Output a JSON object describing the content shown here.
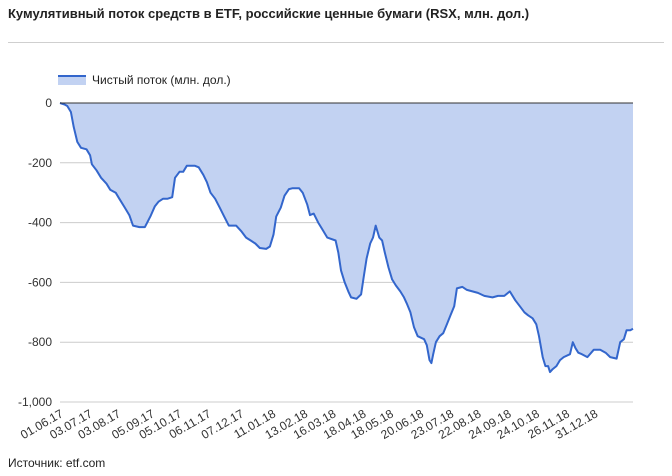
{
  "title": "Кумулятивный поток средств в ETF, российские ценные бумаги (RSX, млн. дол.)",
  "source": "Источник: etf.com",
  "colors": {
    "line": "#3366cc",
    "area": "#c2d2f2",
    "grid": "#cccccc",
    "zero": "#333333"
  },
  "chart_data": {
    "type": "area",
    "legend": {
      "position": "top-left"
    },
    "series": [
      {
        "name": "Чистый поток (млн. дол.)",
        "points": [
          [
            0,
            0
          ],
          [
            5,
            -5
          ],
          [
            8,
            -10
          ],
          [
            12,
            -30
          ],
          [
            15,
            -80
          ],
          [
            19,
            -130
          ],
          [
            23,
            -150
          ],
          [
            29,
            -155
          ],
          [
            33,
            -175
          ],
          [
            35,
            -205
          ],
          [
            40,
            -225
          ],
          [
            45,
            -250
          ],
          [
            51,
            -270
          ],
          [
            55,
            -290
          ],
          [
            61,
            -300
          ],
          [
            65,
            -320
          ],
          [
            71,
            -350
          ],
          [
            76,
            -375
          ],
          [
            80,
            -410
          ],
          [
            87,
            -415
          ],
          [
            93,
            -415
          ],
          [
            99,
            -380
          ],
          [
            104,
            -345
          ],
          [
            108,
            -330
          ],
          [
            113,
            -320
          ],
          [
            118,
            -320
          ],
          [
            123,
            -315
          ],
          [
            126,
            -250
          ],
          [
            131,
            -230
          ],
          [
            135,
            -230
          ],
          [
            139,
            -210
          ],
          [
            148,
            -210
          ],
          [
            152,
            -215
          ],
          [
            157,
            -240
          ],
          [
            161,
            -265
          ],
          [
            165,
            -300
          ],
          [
            170,
            -320
          ],
          [
            175,
            -350
          ],
          [
            180,
            -380
          ],
          [
            185,
            -410
          ],
          [
            193,
            -410
          ],
          [
            199,
            -430
          ],
          [
            204,
            -450
          ],
          [
            209,
            -460
          ],
          [
            214,
            -470
          ],
          [
            219,
            -485
          ],
          [
            226,
            -488
          ],
          [
            230,
            -480
          ],
          [
            234,
            -440
          ],
          [
            237,
            -380
          ],
          [
            242,
            -350
          ],
          [
            246,
            -310
          ],
          [
            251,
            -288
          ],
          [
            255,
            -285
          ],
          [
            262,
            -285
          ],
          [
            266,
            -300
          ],
          [
            271,
            -340
          ],
          [
            274,
            -375
          ],
          [
            278,
            -370
          ],
          [
            283,
            -400
          ],
          [
            287,
            -420
          ],
          [
            293,
            -450
          ],
          [
            302,
            -460
          ],
          [
            305,
            -500
          ],
          [
            308,
            -560
          ],
          [
            312,
            -600
          ],
          [
            316,
            -630
          ],
          [
            319,
            -650
          ],
          [
            325,
            -655
          ],
          [
            330,
            -640
          ],
          [
            333,
            -580
          ],
          [
            336,
            -520
          ],
          [
            340,
            -470
          ],
          [
            343,
            -450
          ],
          [
            346,
            -410
          ],
          [
            350,
            -450
          ],
          [
            353,
            -460
          ],
          [
            356,
            -500
          ],
          [
            360,
            -550
          ],
          [
            364,
            -590
          ],
          [
            368,
            -610
          ],
          [
            373,
            -630
          ],
          [
            377,
            -650
          ],
          [
            380,
            -670
          ],
          [
            384,
            -700
          ],
          [
            388,
            -750
          ],
          [
            392,
            -780
          ],
          [
            399,
            -790
          ],
          [
            402,
            -810
          ],
          [
            405,
            -860
          ],
          [
            407,
            -870
          ],
          [
            409,
            -840
          ],
          [
            412,
            -800
          ],
          [
            416,
            -780
          ],
          [
            420,
            -770
          ],
          [
            424,
            -740
          ],
          [
            428,
            -710
          ],
          [
            432,
            -680
          ],
          [
            435,
            -620
          ],
          [
            441,
            -615
          ],
          [
            446,
            -625
          ],
          [
            452,
            -630
          ],
          [
            458,
            -635
          ],
          [
            465,
            -645
          ],
          [
            474,
            -650
          ],
          [
            480,
            -645
          ],
          [
            487,
            -645
          ],
          [
            493,
            -630
          ],
          [
            499,
            -660
          ],
          [
            504,
            -680
          ],
          [
            509,
            -700
          ],
          [
            513,
            -710
          ],
          [
            518,
            -720
          ],
          [
            522,
            -740
          ],
          [
            525,
            -780
          ],
          [
            529,
            -850
          ],
          [
            532,
            -880
          ],
          [
            535,
            -880
          ],
          [
            537,
            -900
          ],
          [
            540,
            -890
          ],
          [
            544,
            -880
          ],
          [
            548,
            -860
          ],
          [
            552,
            -850
          ],
          [
            559,
            -840
          ],
          [
            562,
            -800
          ],
          [
            565,
            -820
          ],
          [
            568,
            -835
          ],
          [
            572,
            -840
          ],
          [
            578,
            -850
          ],
          [
            585,
            -825
          ],
          [
            592,
            -825
          ],
          [
            598,
            -835
          ],
          [
            603,
            -850
          ],
          [
            610,
            -855
          ],
          [
            614,
            -800
          ],
          [
            618,
            -790
          ],
          [
            621,
            -760
          ],
          [
            625,
            -760
          ],
          [
            628,
            -755
          ]
        ]
      }
    ],
    "x_range": [
      0,
      628
    ],
    "x_ticks": [
      {
        "x": 0,
        "label": "01.06.17"
      },
      {
        "x": 32,
        "label": "03.07.17"
      },
      {
        "x": 63,
        "label": "03.08.17"
      },
      {
        "x": 100,
        "label": "05.09.17"
      },
      {
        "x": 130,
        "label": "05.10.17"
      },
      {
        "x": 162,
        "label": "06.11.17"
      },
      {
        "x": 198,
        "label": "07.12.17"
      },
      {
        "x": 233,
        "label": "11.01.18"
      },
      {
        "x": 268,
        "label": "13.02.18"
      },
      {
        "x": 299,
        "label": "16.03.18"
      },
      {
        "x": 332,
        "label": "18.04.18"
      },
      {
        "x": 362,
        "label": "18.05.18"
      },
      {
        "x": 395,
        "label": "20.06.18"
      },
      {
        "x": 428,
        "label": "23.07.18"
      },
      {
        "x": 458,
        "label": "22.08.18"
      },
      {
        "x": 491,
        "label": "24.09.18"
      },
      {
        "x": 522,
        "label": "24.10.18"
      },
      {
        "x": 555,
        "label": "26.11.18"
      },
      {
        "x": 586,
        "label": "31.12.18"
      }
    ],
    "y_range": [
      -1000,
      0
    ],
    "y_ticks": [
      {
        "value": 0,
        "label": "0"
      },
      {
        "value": -200,
        "label": "-200"
      },
      {
        "value": -400,
        "label": "-400"
      },
      {
        "value": -600,
        "label": "-600"
      },
      {
        "value": -800,
        "label": "-800"
      },
      {
        "value": -1000,
        "label": "-1,000"
      }
    ],
    "grid": true
  }
}
